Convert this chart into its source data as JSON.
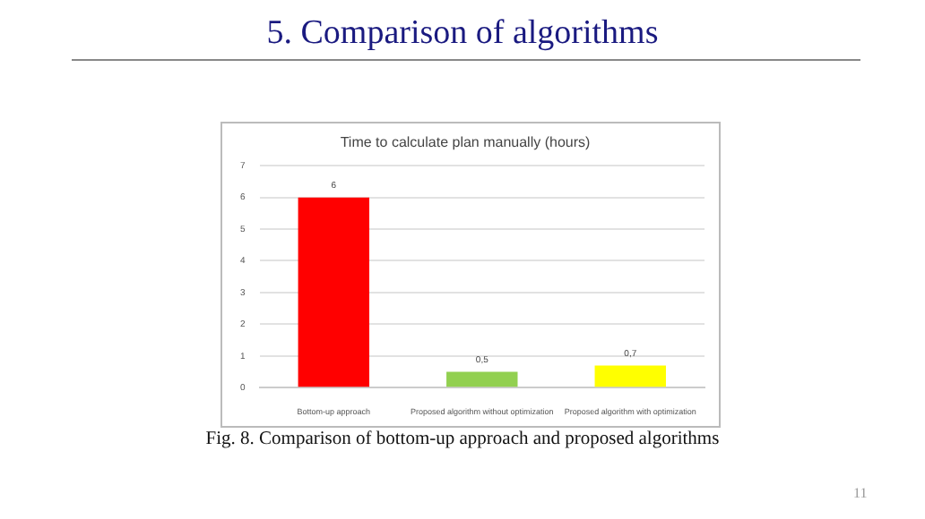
{
  "chart_data": {
    "type": "bar",
    "title": "Time to calculate plan manually (hours)",
    "categories": [
      "Bottom-up approach",
      "Proposed algorithm without optimization",
      "Proposed algorithm with optimization"
    ],
    "values": [
      6,
      0.5,
      0.7
    ],
    "colors": [
      "#ff0000",
      "#92d050",
      "#ffff00"
    ],
    "value_labels": [
      "6",
      "0,5",
      "0,7"
    ],
    "ylim": [
      0,
      7
    ],
    "yticks": [
      0,
      1,
      2,
      3,
      4,
      5,
      6,
      7
    ],
    "grid": "y",
    "legend": false,
    "annotations": [
      "5. Comparison of algorithms",
      "Fig. 8. Comparison of bottom-up approach and proposed algorithms",
      "11"
    ]
  }
}
